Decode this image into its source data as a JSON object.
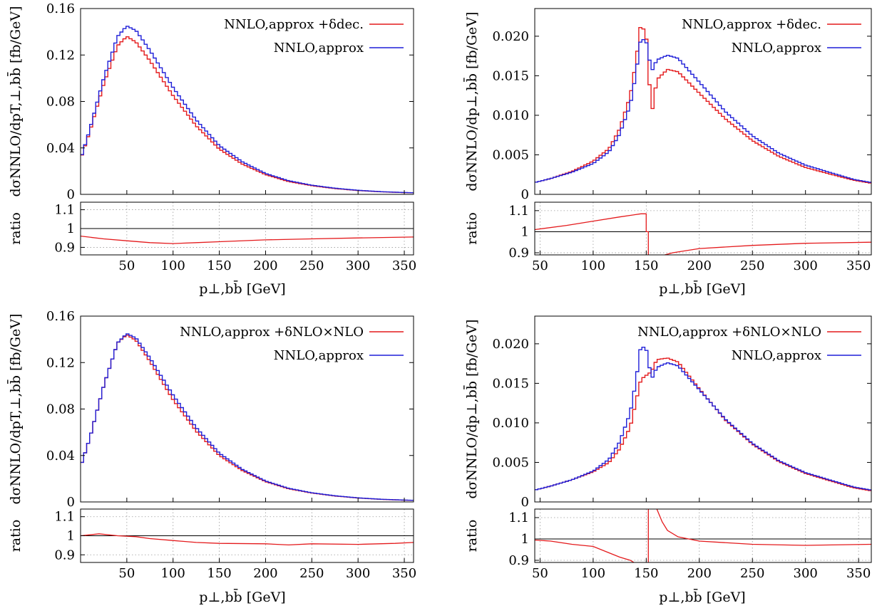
{
  "colors": {
    "nnlo_plus_correction": "#e41a1c",
    "nnlo_approx": "#1f1fd8",
    "reference_line": "#000000"
  },
  "chart_data": [
    {
      "type": "line",
      "id": "top-left",
      "xlabel": "p⊥,bb̄ [GeV]",
      "ylabel": "dσNNLO/dpT,⊥,bb̄ [fb/GeV]",
      "ratio_label": "ratio",
      "xlim": [
        0,
        360
      ],
      "ylim": [
        0,
        0.16
      ],
      "ratio_ylim": [
        0.86,
        1.14
      ],
      "x_ticks": [
        "50",
        "100",
        "150",
        "200",
        "250",
        "300",
        "350"
      ],
      "y_ticks": [
        "0",
        "0.04",
        "0.08",
        "0.12",
        "0.16"
      ],
      "ratio_ticks": [
        "0.9",
        "1",
        "1.1"
      ],
      "grid": {
        "main": false,
        "ratio": true
      },
      "legend_position": "top-right",
      "series": [
        {
          "name": "NNLO,approx +δdec.",
          "color": "#e41a1c",
          "points": [
            [
              0,
              0.03
            ],
            [
              10,
              0.054
            ],
            [
              25,
              0.095
            ],
            [
              40,
              0.128
            ],
            [
              50,
              0.136
            ],
            [
              60,
              0.131
            ],
            [
              75,
              0.115
            ],
            [
              100,
              0.085
            ],
            [
              125,
              0.059
            ],
            [
              150,
              0.039
            ],
            [
              175,
              0.026
            ],
            [
              200,
              0.017
            ],
            [
              225,
              0.011
            ],
            [
              250,
              0.0075
            ],
            [
              275,
              0.005
            ],
            [
              300,
              0.0033
            ],
            [
              325,
              0.0022
            ],
            [
              350,
              0.0015
            ],
            [
              360,
              0.0013
            ]
          ]
        },
        {
          "name": "NNLO,approx",
          "color": "#1f1fd8",
          "points": [
            [
              0,
              0.03
            ],
            [
              10,
              0.056
            ],
            [
              25,
              0.1
            ],
            [
              40,
              0.136
            ],
            [
              50,
              0.145
            ],
            [
              60,
              0.141
            ],
            [
              75,
              0.124
            ],
            [
              100,
              0.092
            ],
            [
              125,
              0.064
            ],
            [
              150,
              0.042
            ],
            [
              175,
              0.028
            ],
            [
              200,
              0.018
            ],
            [
              225,
              0.0117
            ],
            [
              250,
              0.0079
            ],
            [
              275,
              0.0053
            ],
            [
              300,
              0.0035
            ],
            [
              325,
              0.0023
            ],
            [
              350,
              0.0016
            ],
            [
              360,
              0.0014
            ]
          ]
        }
      ],
      "ratio_points": [
        [
          0,
          0.96
        ],
        [
          25,
          0.945
        ],
        [
          50,
          0.935
        ],
        [
          75,
          0.925
        ],
        [
          100,
          0.92
        ],
        [
          125,
          0.925
        ],
        [
          150,
          0.93
        ],
        [
          200,
          0.94
        ],
        [
          250,
          0.945
        ],
        [
          300,
          0.95
        ],
        [
          360,
          0.955
        ]
      ]
    },
    {
      "type": "line",
      "id": "top-right",
      "xlabel": "p⊥,bb̄ [GeV]",
      "ylabel": "dσNNLO/dp⊥,bb̄ [fb/GeV]",
      "ratio_label": "ratio",
      "xlim": [
        45,
        362
      ],
      "ylim": [
        0,
        0.0235
      ],
      "ratio_ylim": [
        0.89,
        1.14
      ],
      "x_ticks": [
        "50",
        "100",
        "150",
        "200",
        "250",
        "300",
        "350"
      ],
      "y_ticks": [
        "0",
        "0.005",
        "0.010",
        "0.015",
        "0.020"
      ],
      "ratio_ticks": [
        "0.9",
        "1",
        "1.1"
      ],
      "grid": {
        "main": false,
        "ratio": true
      },
      "legend_position": "top-right",
      "series": [
        {
          "name": "NNLO,approx +δdec.",
          "color": "#e41a1c",
          "points": [
            [
              45,
              0.0015
            ],
            [
              60,
              0.002
            ],
            [
              80,
              0.0029
            ],
            [
              100,
              0.0042
            ],
            [
              115,
              0.0058
            ],
            [
              125,
              0.0083
            ],
            [
              135,
              0.0125
            ],
            [
              140,
              0.0165
            ],
            [
              145,
              0.0217
            ],
            [
              150,
              0.02
            ],
            [
              155,
              0.01
            ],
            [
              160,
              0.0145
            ],
            [
              170,
              0.0158
            ],
            [
              180,
              0.0155
            ],
            [
              200,
              0.0128
            ],
            [
              225,
              0.0095
            ],
            [
              250,
              0.0068
            ],
            [
              275,
              0.0048
            ],
            [
              300,
              0.0034
            ],
            [
              325,
              0.0025
            ],
            [
              345,
              0.0018
            ],
            [
              362,
              0.0014
            ]
          ]
        },
        {
          "name": "NNLO,approx",
          "color": "#1f1fd8",
          "points": [
            [
              45,
              0.0015
            ],
            [
              60,
              0.002
            ],
            [
              80,
              0.0028
            ],
            [
              100,
              0.0039
            ],
            [
              115,
              0.0054
            ],
            [
              125,
              0.0076
            ],
            [
              135,
              0.0113
            ],
            [
              140,
              0.015
            ],
            [
              145,
              0.0198
            ],
            [
              150,
              0.0193
            ],
            [
              155,
              0.0155
            ],
            [
              160,
              0.017
            ],
            [
              170,
              0.0176
            ],
            [
              180,
              0.0172
            ],
            [
              200,
              0.0142
            ],
            [
              225,
              0.0104
            ],
            [
              250,
              0.0074
            ],
            [
              275,
              0.0052
            ],
            [
              300,
              0.0037
            ],
            [
              325,
              0.0027
            ],
            [
              345,
              0.0019
            ],
            [
              362,
              0.0015
            ]
          ]
        }
      ],
      "ratio_points": [
        [
          45,
          1.01
        ],
        [
          75,
          1.03
        ],
        [
          100,
          1.05
        ],
        [
          125,
          1.07
        ],
        [
          145,
          1.085
        ],
        [
          150,
          1.085
        ],
        [
          150,
          1.0
        ],
        [
          152,
          1.0
        ],
        [
          152,
          0.86
        ],
        [
          155,
          0.86
        ],
        [
          160,
          0.88
        ],
        [
          175,
          0.9
        ],
        [
          200,
          0.92
        ],
        [
          250,
          0.935
        ],
        [
          300,
          0.945
        ],
        [
          362,
          0.95
        ]
      ]
    },
    {
      "type": "line",
      "id": "bottom-left",
      "xlabel": "p⊥,bb̄ [GeV]",
      "ylabel": "dσNNLO/dpT,⊥,bb̄ [fb/GeV]",
      "ratio_label": "ratio",
      "xlim": [
        0,
        360
      ],
      "ylim": [
        0,
        0.16
      ],
      "ratio_ylim": [
        0.86,
        1.14
      ],
      "x_ticks": [
        "50",
        "100",
        "150",
        "200",
        "250",
        "300",
        "350"
      ],
      "y_ticks": [
        "0",
        "0.04",
        "0.08",
        "0.12",
        "0.16"
      ],
      "ratio_ticks": [
        "0.9",
        "1",
        "1.1"
      ],
      "grid": {
        "main": false,
        "ratio": true
      },
      "legend_position": "top-right",
      "series": [
        {
          "name": "NNLO,approx +δNLO×NLO",
          "color": "#e41a1c",
          "points": [
            [
              0,
              0.03
            ],
            [
              10,
              0.055
            ],
            [
              25,
              0.1
            ],
            [
              40,
              0.137
            ],
            [
              50,
              0.144
            ],
            [
              60,
              0.139
            ],
            [
              75,
              0.121
            ],
            [
              100,
              0.088
            ],
            [
              125,
              0.061
            ],
            [
              150,
              0.04
            ],
            [
              175,
              0.027
            ],
            [
              200,
              0.0175
            ],
            [
              225,
              0.0113
            ],
            [
              250,
              0.0077
            ],
            [
              275,
              0.0051
            ],
            [
              300,
              0.0034
            ],
            [
              325,
              0.0022
            ],
            [
              350,
              0.0015
            ],
            [
              360,
              0.0013
            ]
          ]
        },
        {
          "name": "NNLO,approx",
          "color": "#1f1fd8",
          "points": [
            [
              0,
              0.03
            ],
            [
              10,
              0.055
            ],
            [
              25,
              0.1
            ],
            [
              40,
              0.137
            ],
            [
              50,
              0.145
            ],
            [
              60,
              0.141
            ],
            [
              75,
              0.124
            ],
            [
              100,
              0.092
            ],
            [
              125,
              0.064
            ],
            [
              150,
              0.042
            ],
            [
              175,
              0.028
            ],
            [
              200,
              0.018
            ],
            [
              225,
              0.0117
            ],
            [
              250,
              0.0079
            ],
            [
              275,
              0.0053
            ],
            [
              300,
              0.0035
            ],
            [
              325,
              0.0023
            ],
            [
              350,
              0.0016
            ],
            [
              360,
              0.0014
            ]
          ]
        }
      ],
      "ratio_points": [
        [
          0,
          1.0
        ],
        [
          20,
          1.01
        ],
        [
          40,
          1.0
        ],
        [
          60,
          0.995
        ],
        [
          75,
          0.985
        ],
        [
          100,
          0.975
        ],
        [
          125,
          0.965
        ],
        [
          150,
          0.96
        ],
        [
          200,
          0.958
        ],
        [
          225,
          0.952
        ],
        [
          250,
          0.958
        ],
        [
          300,
          0.955
        ],
        [
          340,
          0.96
        ],
        [
          360,
          0.965
        ]
      ]
    },
    {
      "type": "line",
      "id": "bottom-right",
      "xlabel": "p⊥,bb̄ [GeV]",
      "ylabel": "dσNNLO/dp⊥,bb̄ [fb/GeV]",
      "ratio_label": "ratio",
      "xlim": [
        45,
        362
      ],
      "ylim": [
        0,
        0.0235
      ],
      "ratio_ylim": [
        0.89,
        1.14
      ],
      "x_ticks": [
        "50",
        "100",
        "150",
        "200",
        "250",
        "300",
        "350"
      ],
      "y_ticks": [
        "0",
        "0.005",
        "0.010",
        "0.015",
        "0.020"
      ],
      "ratio_ticks": [
        "0.9",
        "1",
        "1.1"
      ],
      "grid": {
        "main": false,
        "ratio": true
      },
      "legend_position": "top-right",
      "series": [
        {
          "name": "NNLO,approx +δNLO×NLO",
          "color": "#e41a1c",
          "points": [
            [
              45,
              0.0015
            ],
            [
              60,
              0.002
            ],
            [
              80,
              0.0028
            ],
            [
              100,
              0.0038
            ],
            [
              115,
              0.005
            ],
            [
              125,
              0.0067
            ],
            [
              135,
              0.0095
            ],
            [
              140,
              0.0125
            ],
            [
              145,
              0.0155
            ],
            [
              150,
              0.016
            ],
            [
              155,
              0.0165
            ],
            [
              160,
              0.018
            ],
            [
              170,
              0.0182
            ],
            [
              180,
              0.0177
            ],
            [
              200,
              0.0143
            ],
            [
              225,
              0.0103
            ],
            [
              250,
              0.0073
            ],
            [
              275,
              0.0051
            ],
            [
              300,
              0.0036
            ],
            [
              325,
              0.0026
            ],
            [
              345,
              0.0018
            ],
            [
              362,
              0.0014
            ]
          ]
        },
        {
          "name": "NNLO,approx",
          "color": "#1f1fd8",
          "points": [
            [
              45,
              0.0015
            ],
            [
              60,
              0.002
            ],
            [
              80,
              0.0028
            ],
            [
              100,
              0.0039
            ],
            [
              115,
              0.0054
            ],
            [
              125,
              0.0076
            ],
            [
              135,
              0.0113
            ],
            [
              140,
              0.015
            ],
            [
              145,
              0.0198
            ],
            [
              150,
              0.0193
            ],
            [
              155,
              0.0155
            ],
            [
              160,
              0.017
            ],
            [
              170,
              0.0176
            ],
            [
              180,
              0.0172
            ],
            [
              200,
              0.0142
            ],
            [
              225,
              0.0104
            ],
            [
              250,
              0.0074
            ],
            [
              275,
              0.0052
            ],
            [
              300,
              0.0037
            ],
            [
              325,
              0.0027
            ],
            [
              345,
              0.0019
            ],
            [
              362,
              0.0015
            ]
          ]
        }
      ],
      "ratio_points": [
        [
          45,
          0.995
        ],
        [
          60,
          0.99
        ],
        [
          80,
          0.975
        ],
        [
          100,
          0.965
        ],
        [
          115,
          0.935
        ],
        [
          125,
          0.915
        ],
        [
          135,
          0.9
        ],
        [
          140,
          0.885
        ],
        [
          150,
          0.87
        ],
        [
          152,
          0.87
        ],
        [
          152,
          1.16
        ],
        [
          160,
          1.14
        ],
        [
          165,
          1.08
        ],
        [
          170,
          1.04
        ],
        [
          180,
          1.01
        ],
        [
          200,
          0.99
        ],
        [
          250,
          0.975
        ],
        [
          300,
          0.97
        ],
        [
          362,
          0.975
        ]
      ]
    }
  ]
}
